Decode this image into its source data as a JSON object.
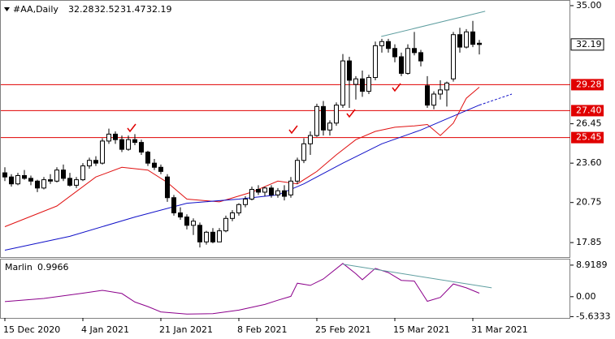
{
  "chart_data": {
    "type": "candlestick",
    "symbol": "#AA,Daily",
    "categories": [
      "15 Dec 2020",
      null,
      null,
      null,
      null,
      null,
      null,
      null,
      null,
      null,
      null,
      null,
      "4 Jan 2021",
      null,
      null,
      null,
      null,
      null,
      null,
      null,
      null,
      null,
      null,
      null,
      "21 Jan 2021",
      null,
      null,
      null,
      null,
      null,
      null,
      null,
      null,
      null,
      null,
      null,
      "8 Feb 2021",
      null,
      null,
      null,
      null,
      null,
      null,
      null,
      null,
      null,
      null,
      null,
      "25 Feb 2021",
      null,
      null,
      null,
      null,
      null,
      null,
      null,
      null,
      null,
      null,
      null,
      "15 Mar 2021",
      null,
      null,
      null,
      null,
      null,
      null,
      null,
      null,
      null,
      null,
      null,
      "31 Mar 2021",
      null
    ],
    "open": [
      22.9,
      22.6,
      22.1,
      22.7,
      22.5,
      22.3,
      21.8,
      22.4,
      22.3,
      23.1,
      22.5,
      22.0,
      22.4,
      23.4,
      23.8,
      23.6,
      25.2,
      25.7,
      25.3,
      24.6,
      25.3,
      25.1,
      24.4,
      23.6,
      23.3,
      22.6,
      21.1,
      20.0,
      19.7,
      19.1,
      19.1,
      17.9,
      18.6,
      17.9,
      18.7,
      19.6,
      20.0,
      20.6,
      21.0,
      21.7,
      21.5,
      21.8,
      21.3,
      21.6,
      21.3,
      22.3,
      23.8,
      25.0,
      25.6,
      27.7,
      26.0,
      26.5,
      27.8,
      31.0,
      29.3,
      29.7,
      28.8,
      29.8,
      32.1,
      32.4,
      31.9,
      31.3,
      30.1,
      31.9,
      31.6,
      29.2,
      27.8,
      28.6,
      28.9,
      29.7,
      32.9,
      32.0,
      33.1,
      32.28
    ],
    "high": [
      23.3,
      22.8,
      22.9,
      23.1,
      22.7,
      22.4,
      22.6,
      22.8,
      23.3,
      23.5,
      22.9,
      22.6,
      23.6,
      24.0,
      24.1,
      25.4,
      26.1,
      25.9,
      25.6,
      25.6,
      25.7,
      25.3,
      24.5,
      23.9,
      23.5,
      22.8,
      21.3,
      20.4,
      19.9,
      19.6,
      19.3,
      18.7,
      18.9,
      18.9,
      19.8,
      20.2,
      20.7,
      21.2,
      21.9,
      22.0,
      21.9,
      22.0,
      21.8,
      22.0,
      22.6,
      24.0,
      25.4,
      25.9,
      27.9,
      28.1,
      26.7,
      28.0,
      31.5,
      31.3,
      29.9,
      30.3,
      30.0,
      32.4,
      32.6,
      32.6,
      32.2,
      31.6,
      32.2,
      33.1,
      31.8,
      29.9,
      28.8,
      29.6,
      29.5,
      33.1,
      33.4,
      33.3,
      33.9,
      32.52
    ],
    "low": [
      22.3,
      21.9,
      22.0,
      22.4,
      22.0,
      21.5,
      21.7,
      22.1,
      22.2,
      22.3,
      21.9,
      21.8,
      22.3,
      23.2,
      23.4,
      23.5,
      25.0,
      25.0,
      24.4,
      24.5,
      24.9,
      24.2,
      23.4,
      23.1,
      22.8,
      20.8,
      19.8,
      19.5,
      18.8,
      18.4,
      17.5,
      17.7,
      17.8,
      17.9,
      18.6,
      19.4,
      19.8,
      20.4,
      20.9,
      21.3,
      21.2,
      21.1,
      21.1,
      20.9,
      21.1,
      22.1,
      23.6,
      24.2,
      25.5,
      25.6,
      25.6,
      26.3,
      27.6,
      27.6,
      28.2,
      28.4,
      28.6,
      29.6,
      31.6,
      31.6,
      30.9,
      29.9,
      30.0,
      31.4,
      30.6,
      27.6,
      27.5,
      28.2,
      27.7,
      29.5,
      31.6,
      31.9,
      32.0,
      31.47
    ],
    "close": [
      22.6,
      22.1,
      22.7,
      22.5,
      22.3,
      21.8,
      22.4,
      22.3,
      23.1,
      22.5,
      22.0,
      22.4,
      23.4,
      23.8,
      23.6,
      25.2,
      25.7,
      25.3,
      24.6,
      25.3,
      25.1,
      24.4,
      23.6,
      23.3,
      23.0,
      21.1,
      20.0,
      19.7,
      19.1,
      19.4,
      17.9,
      18.6,
      17.9,
      18.7,
      19.6,
      20.0,
      20.6,
      21.0,
      21.7,
      21.5,
      21.8,
      21.3,
      21.6,
      21.2,
      22.3,
      23.8,
      25.0,
      25.6,
      27.7,
      26.0,
      26.5,
      27.8,
      31.0,
      29.6,
      29.7,
      28.8,
      29.8,
      32.1,
      32.4,
      31.9,
      31.3,
      30.1,
      31.9,
      31.6,
      31.0,
      27.8,
      28.6,
      28.9,
      29.4,
      32.9,
      32.0,
      33.1,
      32.2,
      32.19
    ],
    "up_color": "#ffffff",
    "down_color": "#000000",
    "ylim": [
      16.8,
      35.35
    ],
    "yticks": [
      {
        "value": 35,
        "label": "35.00"
      },
      26.45,
      {
        "value": 23.6,
        "label": "23.60"
      },
      20.75,
      17.85
    ],
    "levels": [
      29.28,
      {
        "value": 27.4,
        "label": "27.40"
      },
      25.45
    ],
    "level_color": "#e00000",
    "lines": [
      {
        "color": "#e01010",
        "x": [
          0,
          8,
          14,
          18,
          22,
          25,
          28,
          33,
          38,
          42,
          45,
          48,
          51,
          54,
          57,
          60,
          63,
          65,
          67,
          69,
          71,
          73
        ],
        "values": [
          19.0,
          20.5,
          22.6,
          23.3,
          23.1,
          22.2,
          21.0,
          20.8,
          21.5,
          22.3,
          22.1,
          23.0,
          24.2,
          25.3,
          25.9,
          26.2,
          26.3,
          26.4,
          25.6,
          26.5,
          28.3,
          29.1
        ]
      },
      {
        "color": "#1010c8",
        "x": [
          0,
          10,
          20,
          28,
          36,
          42,
          46,
          52,
          58,
          64,
          68,
          73
        ],
        "values": [
          17.3,
          18.3,
          19.7,
          20.7,
          21.0,
          21.3,
          22.1,
          23.6,
          25.0,
          26.0,
          26.8,
          27.8
        ]
      },
      {
        "color": "#1010c8",
        "dashed": true,
        "x": [
          73,
          78
        ],
        "values": [
          27.8,
          28.6
        ]
      }
    ],
    "trendlines": [
      {
        "color": "#5f9ea0",
        "x": [
          57.9,
          73.9
        ],
        "values": [
          32.77,
          34.59
        ]
      }
    ],
    "indicator": {
      "name": "Marlin",
      "color": "#8b008b",
      "x": [
        0,
        6,
        12,
        15,
        18,
        20,
        22,
        24,
        28,
        32,
        36,
        40,
        42,
        44,
        45,
        47,
        49,
        52,
        54,
        55,
        57,
        59,
        61,
        63,
        65,
        67,
        69,
        71,
        73
      ],
      "values": [
        -1.4,
        -0.5,
        1.0,
        1.8,
        0.9,
        -1.5,
        -2.8,
        -4.3,
        -4.9,
        -4.8,
        -3.8,
        -2.2,
        -1.0,
        0.1,
        3.8,
        3.2,
        5.0,
        9.4,
        6.5,
        4.8,
        8.0,
        6.8,
        4.6,
        4.4,
        -1.3,
        -0.2,
        3.6,
        2.5,
        0.9966
      ],
      "ylim": [
        -6.0,
        10.5
      ],
      "yticks": [
        8.9189,
        {
          "value": 0,
          "label": "0.00"
        },
        -5.6333
      ],
      "trendlines": [
        {
          "color": "#5f9ea0",
          "x": [
            52,
            74.9
          ],
          "values": [
            9.17,
            2.5
          ]
        }
      ]
    }
  }
}
